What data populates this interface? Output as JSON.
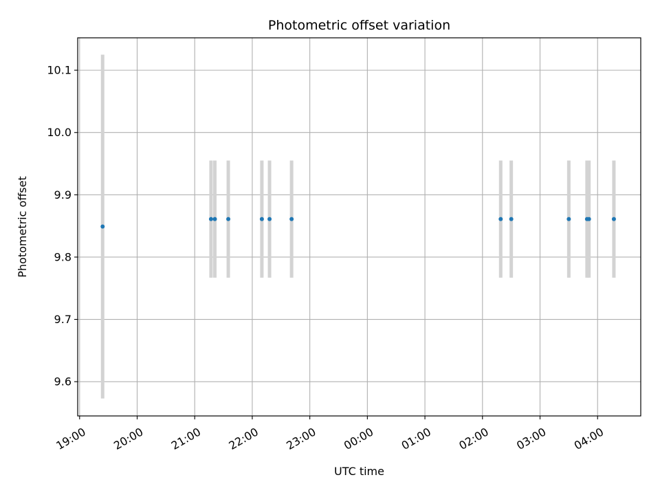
{
  "chart_data": {
    "type": "scatter",
    "title": "Photometric offset variation",
    "xlabel": "UTC time",
    "ylabel": "Photometric offset",
    "x_axis": "time",
    "x_reference_date": "",
    "xlim": [
      "18:58",
      "04:45"
    ],
    "ylim": [
      9.545,
      10.152
    ],
    "xticks": [
      "19:00",
      "20:00",
      "21:00",
      "22:00",
      "23:00",
      "00:00",
      "01:00",
      "02:00",
      "03:00",
      "04:00"
    ],
    "yticks": [
      9.6,
      9.7,
      9.8,
      9.9,
      10.0,
      10.1
    ],
    "ytick_labels": [
      "9.6",
      "9.7",
      "9.8",
      "9.9",
      "10.0",
      "10.1"
    ],
    "grid": true,
    "errorbar_color": "#d3d3d3",
    "marker_color": "#1f77b4",
    "series": [
      {
        "points": [
          {
            "x": "19:24",
            "y": 9.849,
            "err": 0.276
          },
          {
            "x": "21:17",
            "y": 9.861,
            "err": 0.094
          },
          {
            "x": "21:21",
            "y": 9.861,
            "err": 0.094
          },
          {
            "x": "21:35",
            "y": 9.861,
            "err": 0.094
          },
          {
            "x": "22:10",
            "y": 9.861,
            "err": 0.094
          },
          {
            "x": "22:18",
            "y": 9.861,
            "err": 0.094
          },
          {
            "x": "22:41",
            "y": 9.861,
            "err": 0.094
          },
          {
            "x": "02:19",
            "y": 9.861,
            "err": 0.094
          },
          {
            "x": "02:30",
            "y": 9.861,
            "err": 0.094
          },
          {
            "x": "03:30",
            "y": 9.861,
            "err": 0.094
          },
          {
            "x": "03:49",
            "y": 9.861,
            "err": 0.094
          },
          {
            "x": "03:51",
            "y": 9.861,
            "err": 0.094
          },
          {
            "x": "04:17",
            "y": 9.861,
            "err": 0.094
          }
        ]
      }
    ]
  }
}
